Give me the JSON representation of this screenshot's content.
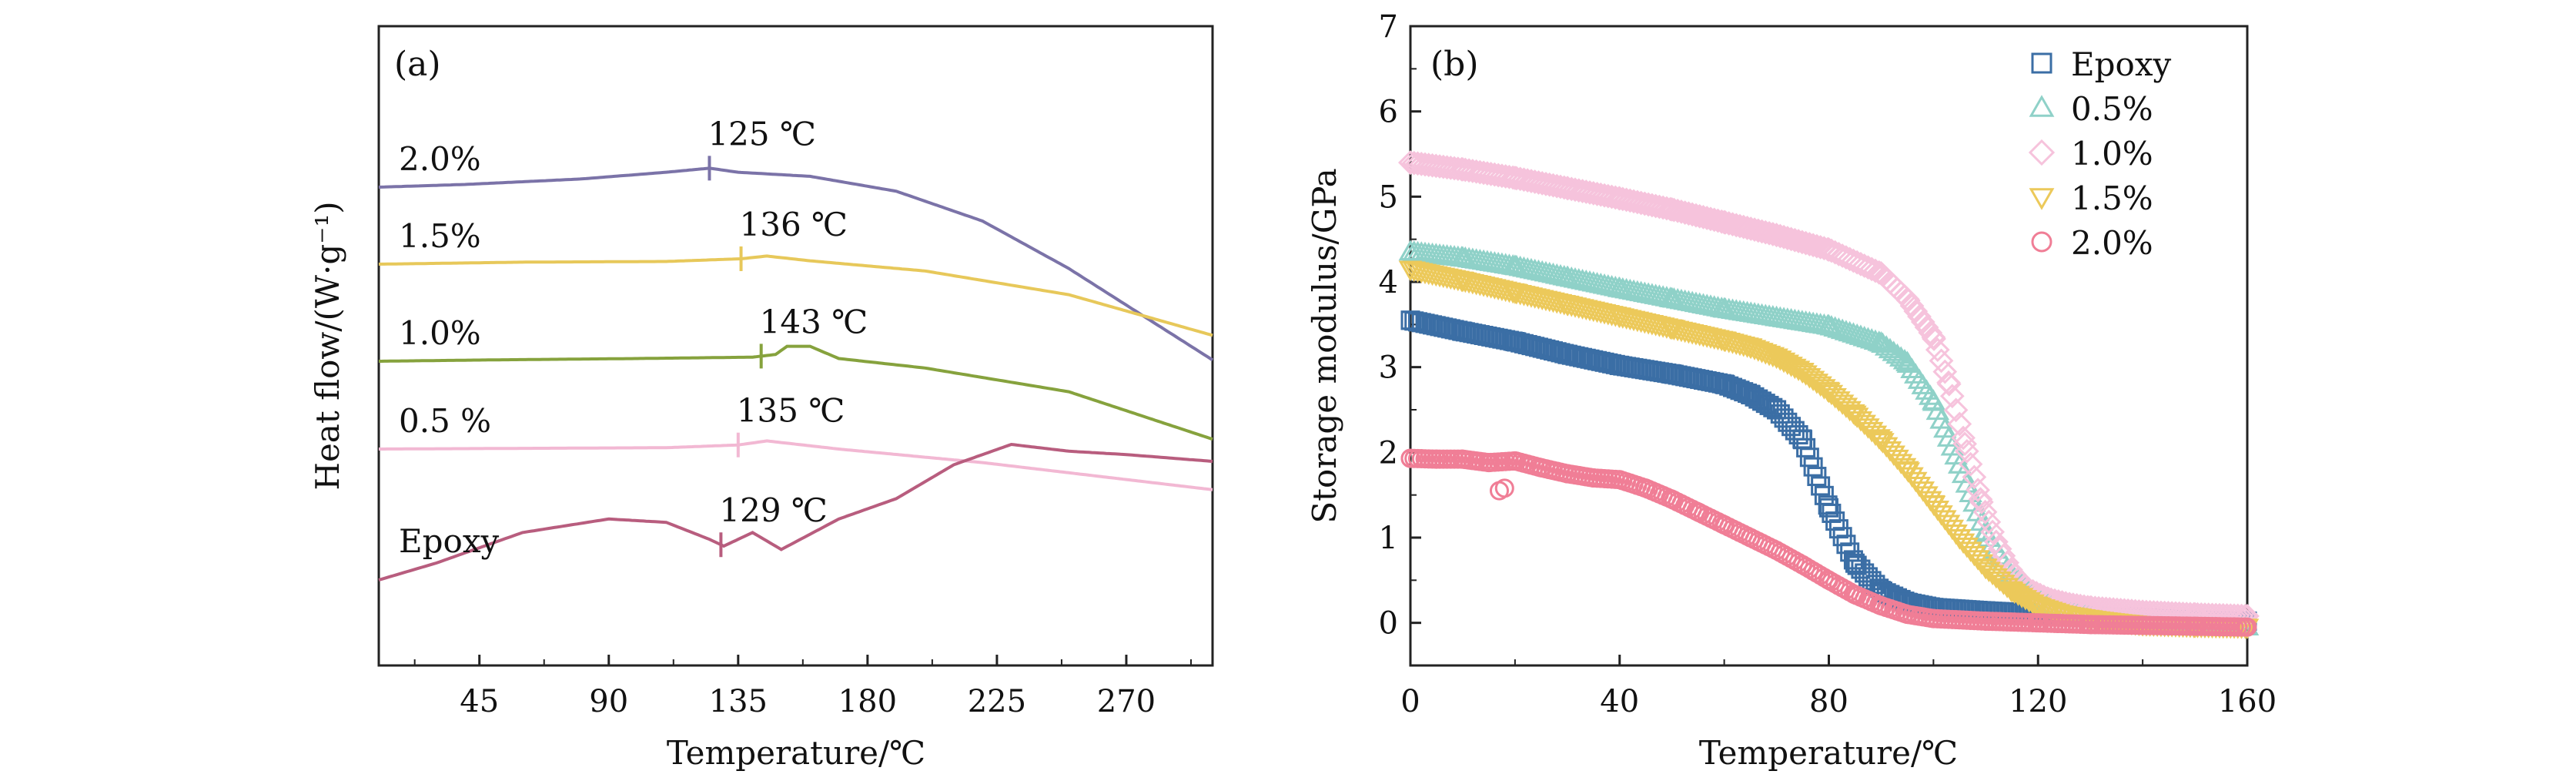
{
  "chart_data": [
    {
      "panel_label": "(a)",
      "type": "line",
      "xlabel": "Temperature/℃",
      "ylabel": "Heat flow/(W·g⁻¹)",
      "xlim": [
        10,
        300
      ],
      "xticks": [
        "45",
        "90",
        "135",
        "180",
        "225",
        "270"
      ],
      "y_tick_labels": "none",
      "legend": "none",
      "grid": false,
      "curves": [
        {
          "label": "2.0%",
          "color": "#7b73a8",
          "tg_label": "125 ℃",
          "tg_x": 125,
          "x": [
            10,
            40,
            80,
            110,
            125,
            135,
            160,
            190,
            220,
            250,
            300
          ],
          "y": [
            0,
            0.004,
            0.012,
            0.022,
            0.028,
            0.022,
            0.016,
            -0.006,
            -0.05,
            -0.12,
            -0.255
          ]
        },
        {
          "label": "1.5%",
          "color": "#e7c85a",
          "tg_label": "136 ℃",
          "tg_x": 136,
          "x": [
            10,
            60,
            110,
            136,
            145,
            160,
            200,
            250,
            300
          ],
          "y": [
            0,
            0.003,
            0.004,
            0.008,
            0.012,
            0.005,
            -0.01,
            -0.045,
            -0.105
          ]
        },
        {
          "label": "1.0%",
          "color": "#86a23d",
          "tg_label": "143 ℃",
          "tg_x": 143,
          "x": [
            10,
            50,
            100,
            140,
            148,
            152,
            160,
            170,
            200,
            250,
            300
          ],
          "y": [
            0,
            0.002,
            0.004,
            0.006,
            0.01,
            0.022,
            0.022,
            0.004,
            -0.01,
            -0.045,
            -0.115
          ]
        },
        {
          "label": "0.5 %",
          "color": "#f2b8d3",
          "tg_label": "135 ℃",
          "tg_x": 135,
          "x": [
            10,
            60,
            110,
            135,
            145,
            170,
            220,
            300
          ],
          "y": [
            0,
            0.001,
            0.002,
            0.006,
            0.012,
            0.0,
            -0.02,
            -0.06
          ]
        },
        {
          "label": "Epoxy",
          "color": "#b85d7e",
          "tg_label": "129 ℃",
          "tg_x": 129,
          "x": [
            10,
            30,
            60,
            90,
            110,
            125,
            130,
            140,
            150,
            170,
            190,
            210,
            230,
            250,
            270,
            300
          ],
          "y": [
            0,
            0.025,
            0.07,
            0.09,
            0.085,
            0.06,
            0.05,
            0.07,
            0.045,
            0.09,
            0.12,
            0.17,
            0.2,
            0.19,
            0.185,
            0.175
          ]
        }
      ]
    },
    {
      "panel_label": "(b)",
      "type": "scatter",
      "xlabel": "Temperature/℃",
      "ylabel": "Storage modulus/GPa",
      "xlim": [
        0,
        160
      ],
      "ylim": [
        -0.5,
        7
      ],
      "xticks": [
        "0",
        "40",
        "80",
        "120",
        "160"
      ],
      "yticks": [
        "0",
        "1",
        "2",
        "3",
        "4",
        "5",
        "6",
        "7"
      ],
      "legend": "top-right",
      "grid": false,
      "series": [
        {
          "name": "Epoxy",
          "marker": "square",
          "color": "#3b6ea5",
          "x": [
            0,
            10,
            20,
            30,
            40,
            50,
            60,
            65,
            70,
            75,
            80,
            85,
            90,
            95,
            100,
            110,
            120,
            130,
            140,
            150,
            160
          ],
          "y": [
            3.55,
            3.42,
            3.3,
            3.15,
            3.02,
            2.92,
            2.8,
            2.68,
            2.5,
            2.15,
            1.35,
            0.7,
            0.38,
            0.24,
            0.18,
            0.14,
            0.11,
            0.08,
            0.06,
            0.04,
            0.02
          ]
        },
        {
          "name": "0.5%",
          "marker": "triangle-up",
          "color": "#8fd1c8",
          "x": [
            0,
            10,
            20,
            30,
            40,
            50,
            60,
            70,
            80,
            90,
            95,
            100,
            105,
            110,
            115,
            120,
            125,
            130,
            140,
            150,
            160
          ],
          "y": [
            4.35,
            4.28,
            4.18,
            4.05,
            3.92,
            3.8,
            3.68,
            3.58,
            3.48,
            3.28,
            3.05,
            2.6,
            1.85,
            1.05,
            0.55,
            0.28,
            0.15,
            0.08,
            0.02,
            -0.02,
            -0.05
          ]
        },
        {
          "name": "1.0%",
          "marker": "diamond",
          "color": "#f6c3dc",
          "x": [
            0,
            10,
            20,
            30,
            40,
            50,
            60,
            70,
            80,
            90,
            95,
            100,
            103,
            106,
            109,
            112,
            115,
            118,
            122,
            126,
            130,
            140,
            150,
            160
          ],
          "y": [
            5.4,
            5.32,
            5.22,
            5.1,
            4.98,
            4.85,
            4.7,
            4.55,
            4.38,
            4.1,
            3.8,
            3.35,
            2.8,
            2.1,
            1.45,
            0.95,
            0.6,
            0.4,
            0.28,
            0.22,
            0.18,
            0.13,
            0.1,
            0.08
          ]
        },
        {
          "name": "1.5%",
          "marker": "triangle-down",
          "color": "#ecc95a",
          "x": [
            0,
            10,
            20,
            30,
            40,
            50,
            60,
            65,
            70,
            75,
            80,
            85,
            90,
            95,
            100,
            105,
            110,
            115,
            120,
            125,
            130,
            135,
            140,
            150,
            160
          ],
          "y": [
            4.15,
            4.02,
            3.88,
            3.74,
            3.6,
            3.46,
            3.32,
            3.24,
            3.12,
            2.95,
            2.72,
            2.45,
            2.15,
            1.8,
            1.4,
            1.0,
            0.65,
            0.38,
            0.2,
            0.1,
            0.05,
            0.01,
            -0.02,
            -0.04,
            -0.05
          ]
        },
        {
          "name": "2.0%",
          "marker": "circle",
          "color": "#f07e96",
          "x": [
            0,
            5,
            10,
            15,
            20,
            25,
            30,
            35,
            40,
            45,
            50,
            55,
            60,
            65,
            70,
            75,
            80,
            85,
            90,
            95,
            100,
            110,
            120,
            130,
            140,
            150,
            160
          ],
          "y": [
            1.93,
            1.92,
            1.92,
            1.88,
            1.9,
            1.82,
            1.75,
            1.7,
            1.68,
            1.58,
            1.45,
            1.3,
            1.15,
            1.0,
            0.85,
            0.68,
            0.5,
            0.33,
            0.2,
            0.1,
            0.05,
            0.02,
            0.0,
            -0.02,
            -0.03,
            -0.04,
            -0.05
          ]
        }
      ],
      "extra_points": [
        {
          "series": "2.0%",
          "x": 17,
          "y": 1.55
        },
        {
          "series": "2.0%",
          "x": 18,
          "y": 1.58
        }
      ]
    }
  ]
}
